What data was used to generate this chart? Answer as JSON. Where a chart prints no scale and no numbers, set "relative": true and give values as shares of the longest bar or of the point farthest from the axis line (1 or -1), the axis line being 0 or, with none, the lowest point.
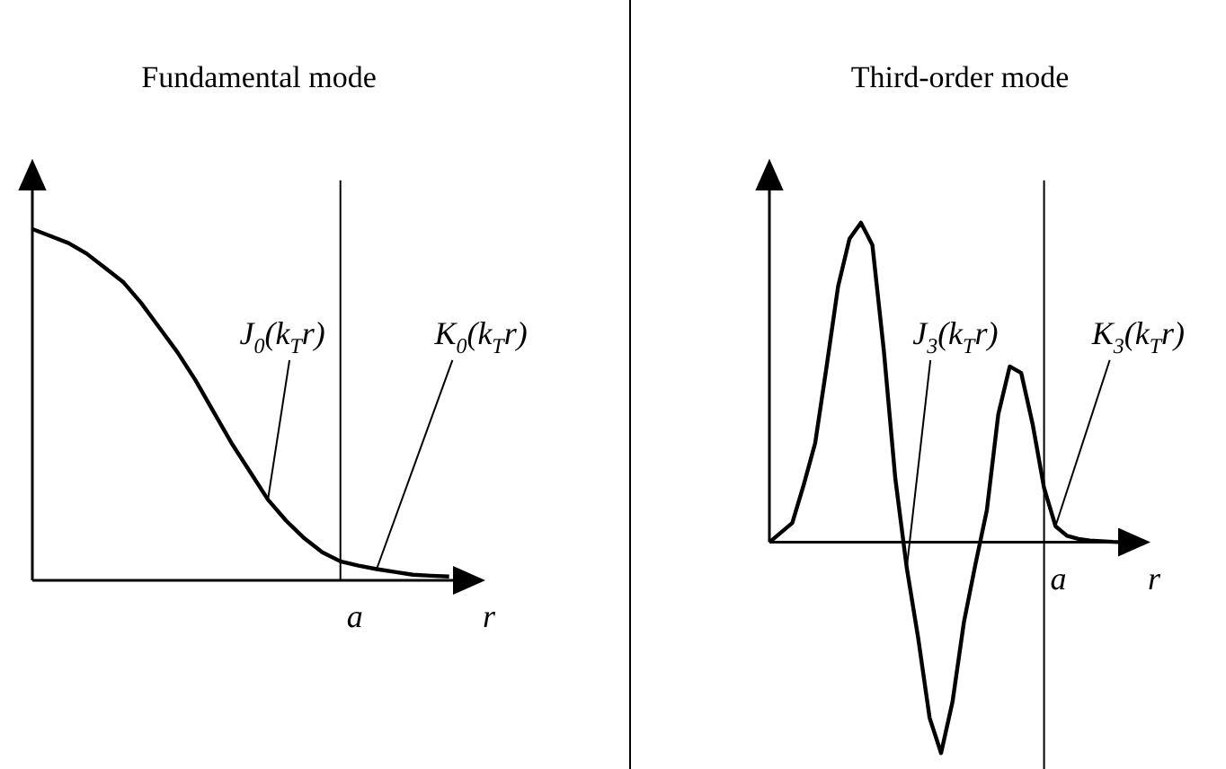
{
  "chart_data": [
    {
      "type": "line",
      "title": "Fundamental mode",
      "relative": true,
      "xlabel": "r",
      "color": "#000000",
      "marker": "none",
      "line_style": "solid",
      "categories": [
        null,
        null,
        null,
        null,
        null,
        null,
        null,
        null,
        null,
        null,
        null,
        null,
        null,
        null,
        null,
        null,
        null,
        null,
        null,
        null,
        null,
        null,
        null,
        null
      ],
      "values": [
        1,
        0.98,
        0.96,
        0.93,
        0.89,
        0.85,
        0.79,
        0.72,
        0.65,
        0.57,
        0.48,
        0.39,
        0.31,
        0.23,
        0.17,
        0.12,
        0.08,
        0.054,
        0.042,
        0.032,
        0.024,
        0.016,
        0.013,
        0.011
      ],
      "ref_lines": [
        {
          "axis": "x",
          "label": "a"
        }
      ],
      "annotations": [
        "J$_{0}$(k$_{T}$r)",
        "K$_{0}$(k$_{T}$r)"
      ]
    },
    {
      "type": "line",
      "title": "Third-order mode",
      "relative": true,
      "xlabel": "r",
      "color": "#000000",
      "marker": "none",
      "line_style": "solid",
      "categories": [
        null,
        null,
        null,
        null,
        null,
        null,
        null,
        null,
        null,
        null,
        null,
        null,
        null,
        null,
        null,
        null,
        null,
        null,
        null,
        null,
        null,
        null,
        null,
        null,
        null,
        null,
        null,
        null,
        null,
        null,
        null,
        null
      ],
      "values": [
        0,
        0.03,
        0.06,
        0.18,
        0.31,
        0.55,
        0.8,
        0.95,
        1,
        0.93,
        0.6,
        0.2,
        -0.08,
        -0.3,
        -0.55,
        -0.66,
        -0.5,
        -0.25,
        -0.07,
        0.1,
        0.4,
        0.55,
        0.53,
        0.37,
        0.17,
        0.05,
        0.02,
        0.01,
        0.005,
        0.003,
        0.001,
        0
      ],
      "ref_lines": [
        {
          "axis": "x",
          "label": "a"
        }
      ],
      "annotations": [
        "J$_{3}$(k$_{T}$r)",
        "K$_{3}$(k$_{T}$r)"
      ]
    }
  ]
}
